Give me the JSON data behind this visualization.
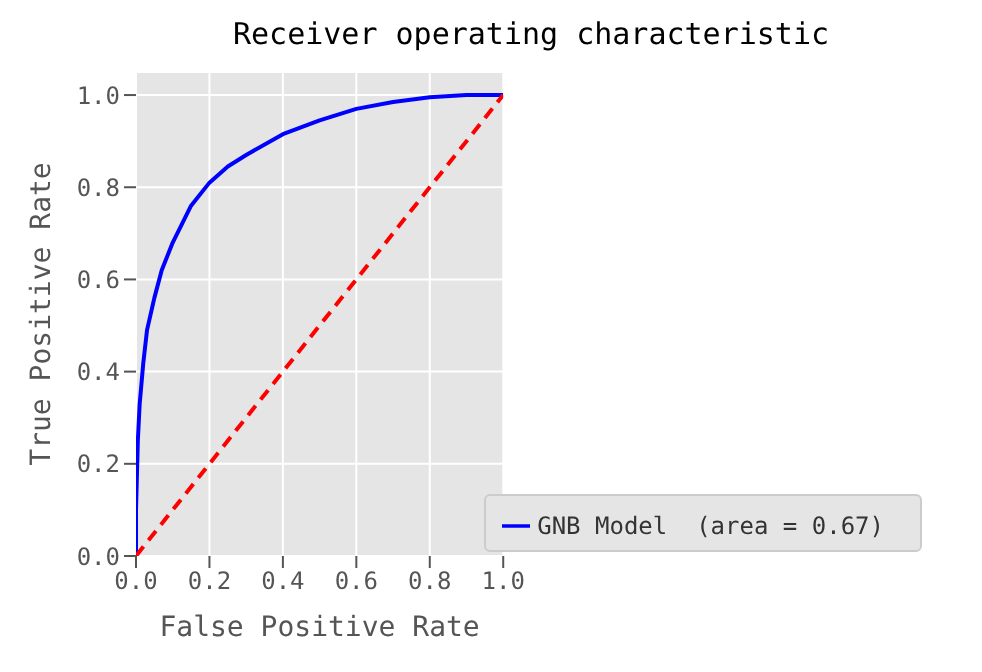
{
  "chart_data": {
    "type": "line",
    "title": "Receiver operating characteristic",
    "xlabel": "False Positive Rate",
    "ylabel": "True Positive Rate",
    "xlim": [
      0,
      1
    ],
    "ylim": [
      0,
      1.05
    ],
    "xticks": [
      {
        "value": 0,
        "label": "0.0"
      },
      0.2,
      0.4,
      0.6,
      0.8,
      {
        "value": 1,
        "label": "1.0"
      }
    ],
    "yticks": [
      {
        "value": 0,
        "label": "0.0"
      },
      0.2,
      0.4,
      0.6,
      0.8,
      {
        "value": 1,
        "label": "1.0"
      }
    ],
    "grid": true,
    "legend": "bottom right",
    "marker": "none",
    "series": [
      {
        "name": "GNB Model  (area = 0.67)",
        "color": "#0000ff",
        "line_style": "solid",
        "x": [
          0,
          0,
          0.005,
          0.01,
          0.02,
          0.03,
          0.05,
          0.07,
          0.1,
          0.15,
          0.2,
          0.25,
          0.3,
          0.4,
          0.5,
          0.6,
          0.7,
          0.8,
          0.9,
          1
        ],
        "values": [
          0,
          0.1,
          0.25,
          0.33,
          0.42,
          0.49,
          0.56,
          0.62,
          0.68,
          0.76,
          0.81,
          0.845,
          0.87,
          0.915,
          0.945,
          0.97,
          0.985,
          0.995,
          1,
          1
        ]
      },
      {
        "color": "#ff0000",
        "line_style": "dashed",
        "x": [
          0,
          1
        ],
        "values": [
          0,
          1
        ]
      }
    ]
  }
}
